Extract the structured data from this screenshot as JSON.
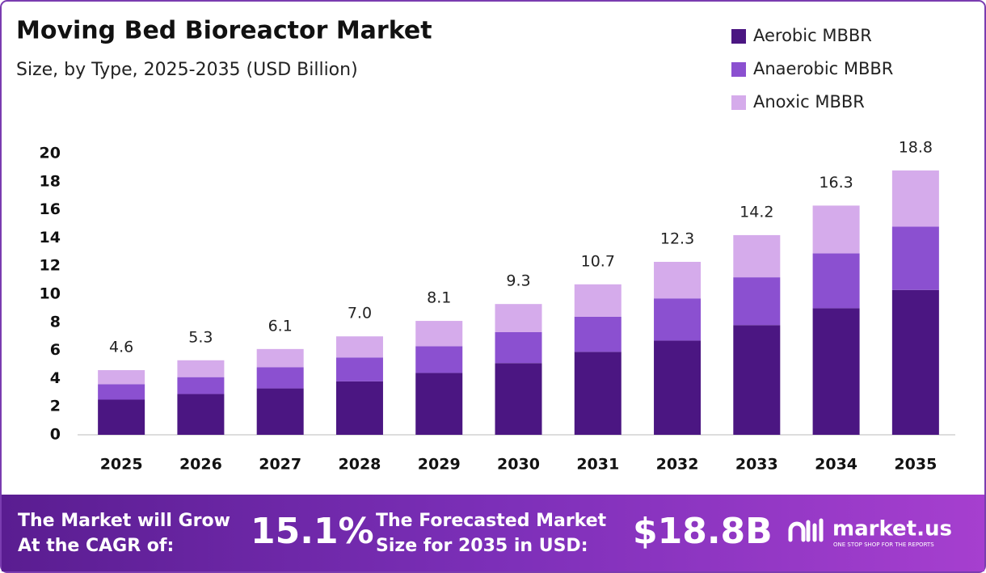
{
  "chart_data": {
    "type": "stacked-bar",
    "title": "Moving Bed Bioreactor Market",
    "subtitle": "Size, by Type, 2025-2035 (USD Billion)",
    "categories": [
      "2025",
      "2026",
      "2027",
      "2028",
      "2029",
      "2030",
      "2031",
      "2032",
      "2033",
      "2034",
      "2035"
    ],
    "series": [
      {
        "name": "Aerobic MBBR",
        "color": "#4b1682",
        "values": [
          2.5,
          2.9,
          3.3,
          3.8,
          4.4,
          5.1,
          5.9,
          6.7,
          7.8,
          9.0,
          10.3
        ]
      },
      {
        "name": "Anaerobic MBBR",
        "color": "#8b50d0",
        "values": [
          1.1,
          1.2,
          1.5,
          1.7,
          1.9,
          2.2,
          2.5,
          3.0,
          3.4,
          3.9,
          4.5
        ]
      },
      {
        "name": "Anoxic MBBR",
        "color": "#d5abeb",
        "values": [
          1.0,
          1.2,
          1.3,
          1.5,
          1.8,
          2.0,
          2.3,
          2.6,
          3.0,
          3.4,
          4.0
        ]
      }
    ],
    "totals": [
      4.6,
      5.3,
      6.1,
      {
        "value": 7.0,
        "label": "7.0"
      },
      8.1,
      9.3,
      10.7,
      12.3,
      14.2,
      16.3,
      18.8
    ],
    "ylim": [
      0,
      20
    ],
    "yticks": [
      0,
      2,
      4,
      6,
      8,
      10,
      12,
      14,
      16,
      18,
      20
    ],
    "grid": false,
    "legend": "top-right"
  },
  "footer": {
    "cagr_text": [
      "The Market will Grow",
      "At the CAGR of:"
    ],
    "cagr_value": "15.1%",
    "forecast_text": [
      "The Forecasted Market",
      "Size for 2035 in USD:"
    ],
    "forecast_value": "$18.8B",
    "brand": "market.us",
    "tagline": "ONE STOP SHOP FOR THE REPORTS"
  }
}
